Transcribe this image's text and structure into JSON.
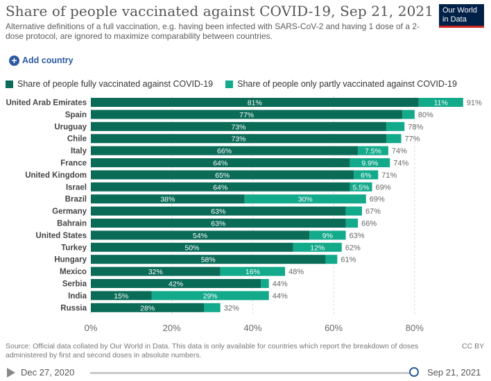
{
  "header": {
    "title": "Share of people vaccinated against COVID-19, Sep 21, 2021",
    "subtitle": "Alternative definitions of a full vaccination, e.g. having been infected with SARS-CoV-2 and having 1 dose of a 2-dose protocol, are ignored to maximize comparability between countries.",
    "logo_line1": "Our World",
    "logo_line2": "in Data"
  },
  "controls": {
    "add_country": "Add country"
  },
  "colors": {
    "full": "#0a6b57",
    "partial": "#13a98b",
    "logo_bg": "#002147",
    "accent": "#2c5aa0"
  },
  "chart_data": {
    "type": "bar",
    "orientation": "horizontal",
    "stacked": true,
    "title": "Share of people vaccinated against COVID-19, Sep 21, 2021",
    "legend_position": "top",
    "xlim": [
      0,
      90
    ],
    "xticks": [
      "0%",
      "20%",
      "40%",
      "60%",
      "80%"
    ],
    "xtick_values": [
      0,
      20,
      40,
      60,
      80
    ],
    "grid": true,
    "categories": [
      "United Arab Emirates",
      "Spain",
      "Uruguay",
      "Chile",
      "Italy",
      "France",
      "United Kingdom",
      "Israel",
      "Brazil",
      "Germany",
      "Bahrain",
      "United States",
      "Turkey",
      "Hungary",
      "Mexico",
      "Serbia",
      "India",
      "Russia"
    ],
    "series": [
      {
        "name": "Share of people fully vaccinated against COVID-19",
        "values": [
          81,
          77,
          73,
          73,
          66,
          64,
          65,
          64,
          38,
          63,
          63,
          54,
          50,
          58,
          32,
          42,
          15,
          28
        ],
        "labels": [
          "81%",
          "77%",
          "73%",
          "73%",
          "66%",
          "64%",
          "65%",
          "64%",
          "38%",
          "63%",
          "63%",
          "54%",
          "50%",
          "58%",
          "32%",
          "42%",
          "15%",
          "28%"
        ]
      },
      {
        "name": "Share of people only partly vaccinated against COVID-19",
        "values": [
          11,
          3,
          4.5,
          3.7,
          7.5,
          9.9,
          6,
          5.5,
          30,
          4,
          3,
          9,
          12,
          2.9,
          16,
          2,
          29,
          4
        ],
        "labels": [
          "11%",
          "",
          "",
          "",
          "7.5%",
          "9.9%",
          "6%",
          "5.5%",
          "30%",
          "",
          "",
          "9%",
          "12%",
          "",
          "16%",
          "",
          "29%",
          ""
        ]
      }
    ],
    "totals": [
      "91%",
      "80%",
      "78%",
      "77%",
      "74%",
      "74%",
      "71%",
      "69%",
      "69%",
      "67%",
      "66%",
      "63%",
      "62%",
      "61%",
      "48%",
      "44%",
      "44%",
      "32%"
    ]
  },
  "footer": {
    "source": "Source: Official data collated by Our World in Data. This data is only available for countries which report the breakdown of doses administered by first and second doses in absolute numbers.",
    "license": "CC BY"
  },
  "timeline": {
    "start": "Dec 27, 2020",
    "end": "Sep 21, 2021"
  }
}
